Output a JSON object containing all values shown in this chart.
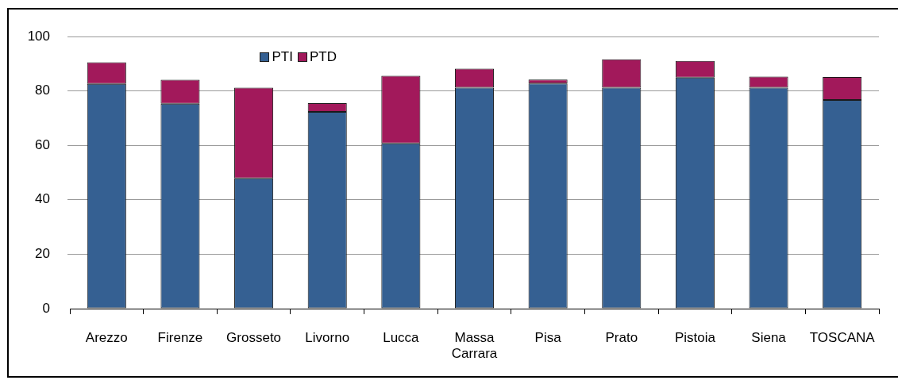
{
  "chart_data": {
    "type": "bar",
    "stacked": true,
    "categories": [
      "Arezzo",
      "Firenze",
      "Grosseto",
      "Livorno",
      "Lucca",
      "Massa Carrara",
      "Pisa",
      "Prato",
      "Pistoia",
      "Siena",
      "TOSCANA"
    ],
    "series": [
      {
        "name": "PTI",
        "color": "#356092",
        "values": [
          82.6,
          75.3,
          47.9,
          72.3,
          60.7,
          81.2,
          82.7,
          81.2,
          84.9,
          81.2,
          76.7
        ]
      },
      {
        "name": "PTD",
        "color": "#a2195b",
        "values": [
          7.9,
          8.8,
          33.3,
          3.2,
          24.9,
          7.0,
          1.5,
          10.4,
          6.1,
          4.1,
          8.4
        ]
      }
    ],
    "ylim": [
      0,
      100
    ],
    "yticks": [
      0,
      20,
      40,
      60,
      80,
      100
    ],
    "grid": "y",
    "legend": "top left"
  }
}
